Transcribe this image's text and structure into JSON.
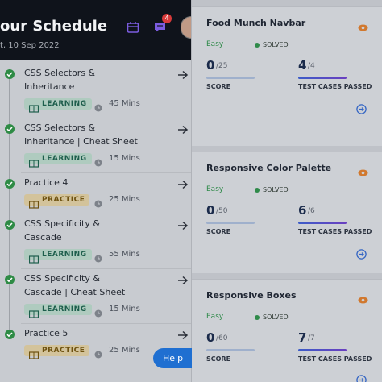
{
  "header": {
    "title": "our Schedule",
    "date": "t, 10 Sep 2022",
    "notification_count": 4
  },
  "schedule": [
    {
      "title_lines": [
        "CSS Selectors &",
        "Inheritance"
      ],
      "tag": "LEARNING",
      "duration": "45 Mins"
    },
    {
      "title_lines": [
        "CSS Selectors &",
        "Inheritance | Cheat Sheet"
      ],
      "tag": "LEARNING",
      "duration": "15 Mins"
    },
    {
      "title_lines": [
        "Practice 4"
      ],
      "tag": "PRACTICE",
      "duration": "25 Mins"
    },
    {
      "title_lines": [
        "CSS Specificity &",
        "Cascade"
      ],
      "tag": "LEARNING",
      "duration": "55 Mins"
    },
    {
      "title_lines": [
        "CSS Specificity &",
        "Cascade | Cheat Sheet"
      ],
      "tag": "LEARNING",
      "duration": "15 Mins"
    },
    {
      "title_lines": [
        "Practice 5"
      ],
      "tag": "PRACTICE",
      "duration": "25 Mins"
    }
  ],
  "help_button": "Help",
  "cards": [
    {
      "title": "Food Munch Navbar",
      "difficulty": "Easy",
      "status": "SOLVED",
      "score": 0,
      "score_total": "/25",
      "score_label": "SCORE",
      "tests": 4,
      "tests_total": "/4",
      "tests_label": "TEST CASES PASSED"
    },
    {
      "title": "Responsive Color Palette",
      "difficulty": "Easy",
      "status": "SOLVED",
      "score": 0,
      "score_total": "/50",
      "score_label": "SCORE",
      "tests": 6,
      "tests_total": "/6",
      "tests_label": "TEST CASES PASSED"
    },
    {
      "title": "Responsive Boxes",
      "difficulty": "Easy",
      "status": "SOLVED",
      "score": 0,
      "score_total": "/60",
      "score_label": "SCORE",
      "tests": 7,
      "tests_total": "/7",
      "tests_label": "TEST CASES PASSED"
    }
  ]
}
